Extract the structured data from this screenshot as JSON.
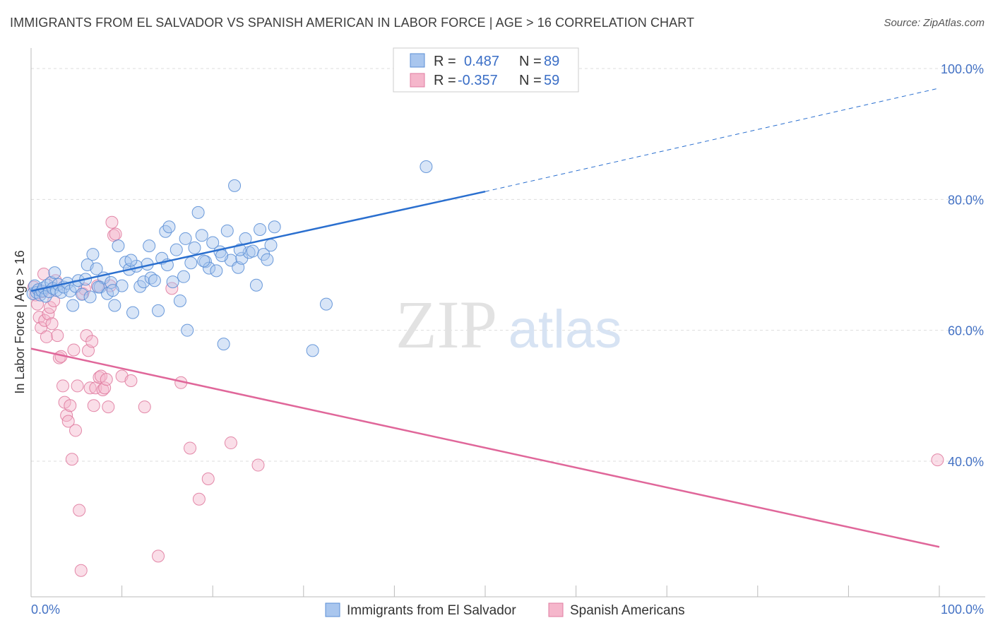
{
  "title": "IMMIGRANTS FROM EL SALVADOR VS SPANISH AMERICAN IN LABOR FORCE | AGE > 16 CORRELATION CHART",
  "source": "Source: ZipAtlas.com",
  "watermark": {
    "zip": "ZIP",
    "atlas": "atlas"
  },
  "colors": {
    "blue_fill": "#a9c6ee",
    "blue_stroke": "#5b8fd6",
    "blue_line": "#2a6fcf",
    "pink_fill": "#f5b6cb",
    "pink_stroke": "#e07ca0",
    "pink_line": "#e0679a",
    "grid": "#dddddd",
    "tick": "#4472c4"
  },
  "legend": {
    "rows": [
      {
        "r_label": "R =",
        "r_value": "0.487",
        "n_label": "N =",
        "n_value": "89"
      },
      {
        "r_label": "R =",
        "r_value": "-0.357",
        "n_label": "N =",
        "n_value": "59"
      }
    ]
  },
  "chart_data": {
    "type": "scatter",
    "xlabel": "",
    "ylabel": "In Labor Force | Age > 16",
    "xlim": [
      0,
      100
    ],
    "ylim": [
      21,
      104
    ],
    "x_ticks": [
      "0.0%",
      "100.0%"
    ],
    "y_ticks": [
      {
        "value": 40,
        "label": "40.0%"
      },
      {
        "value": 60,
        "label": "60.0%"
      },
      {
        "value": 80,
        "label": "80.0%"
      },
      {
        "value": 100,
        "label": "100.0%"
      }
    ],
    "grid": true,
    "legend_placement": "top-center",
    "series": [
      {
        "name": "Immigrants from El Salvador",
        "trend": {
          "x0": 0,
          "y0": 66.0,
          "x1": 50,
          "y1": 81.2,
          "dashed_to_x": 100,
          "dashed_to_y": 97.0
        },
        "points": [
          [
            0.2,
            65.6
          ],
          [
            0.4,
            66.8
          ],
          [
            0.6,
            65.8
          ],
          [
            0.8,
            66.2
          ],
          [
            1.0,
            65.4
          ],
          [
            1.2,
            66.0
          ],
          [
            1.4,
            66.5
          ],
          [
            1.6,
            65.2
          ],
          [
            1.8,
            66.9
          ],
          [
            2.0,
            65.9
          ],
          [
            2.2,
            67.3
          ],
          [
            2.4,
            66.4
          ],
          [
            2.6,
            68.8
          ],
          [
            2.8,
            66.1
          ],
          [
            3.0,
            67.0
          ],
          [
            3.3,
            65.8
          ],
          [
            3.6,
            66.6
          ],
          [
            4.0,
            67.2
          ],
          [
            4.3,
            66.0
          ],
          [
            4.6,
            63.8
          ],
          [
            4.9,
            66.7
          ],
          [
            5.2,
            67.6
          ],
          [
            5.6,
            65.5
          ],
          [
            6.0,
            67.8
          ],
          [
            6.2,
            70.0
          ],
          [
            6.5,
            65.1
          ],
          [
            6.8,
            71.6
          ],
          [
            7.2,
            69.4
          ],
          [
            7.6,
            66.6
          ],
          [
            8.0,
            68.0
          ],
          [
            8.4,
            65.6
          ],
          [
            8.8,
            67.3
          ],
          [
            9.2,
            63.8
          ],
          [
            9.6,
            72.9
          ],
          [
            10.0,
            66.8
          ],
          [
            10.4,
            70.4
          ],
          [
            10.8,
            69.3
          ],
          [
            11.2,
            62.7
          ],
          [
            11.6,
            69.8
          ],
          [
            12.0,
            66.7
          ],
          [
            12.4,
            67.4
          ],
          [
            12.8,
            70.1
          ],
          [
            13.2,
            68.0
          ],
          [
            13.6,
            67.6
          ],
          [
            14.0,
            63.0
          ],
          [
            14.4,
            71.0
          ],
          [
            14.8,
            75.1
          ],
          [
            15.2,
            75.8
          ],
          [
            15.6,
            67.4
          ],
          [
            16.0,
            72.3
          ],
          [
            16.4,
            64.5
          ],
          [
            16.8,
            68.2
          ],
          [
            17.2,
            60.0
          ],
          [
            17.6,
            70.3
          ],
          [
            18.0,
            72.6
          ],
          [
            18.4,
            78.0
          ],
          [
            18.8,
            74.5
          ],
          [
            19.2,
            70.5
          ],
          [
            19.6,
            69.5
          ],
          [
            20.0,
            73.4
          ],
          [
            20.4,
            69.1
          ],
          [
            20.8,
            72.0
          ],
          [
            21.2,
            57.9
          ],
          [
            21.6,
            75.2
          ],
          [
            22.0,
            70.7
          ],
          [
            22.4,
            82.1
          ],
          [
            22.8,
            69.6
          ],
          [
            23.2,
            71.0
          ],
          [
            23.6,
            74.0
          ],
          [
            24.0,
            71.9
          ],
          [
            24.4,
            72.1
          ],
          [
            24.8,
            66.9
          ],
          [
            25.2,
            75.4
          ],
          [
            25.6,
            71.6
          ],
          [
            26.0,
            70.8
          ],
          [
            26.4,
            73.0
          ],
          [
            26.8,
            75.8
          ],
          [
            7.4,
            66.6
          ],
          [
            9.0,
            66.1
          ],
          [
            11.0,
            70.7
          ],
          [
            13.0,
            72.9
          ],
          [
            15.0,
            70.0
          ],
          [
            17.0,
            74.0
          ],
          [
            19.0,
            70.6
          ],
          [
            21.0,
            71.4
          ],
          [
            23.0,
            72.3
          ],
          [
            31.0,
            56.9
          ],
          [
            32.5,
            64.0
          ],
          [
            43.5,
            85.0
          ]
        ]
      },
      {
        "name": "Spanish Americans",
        "trend": {
          "x0": 0,
          "y0": 57.2,
          "x1": 100,
          "y1": 26.9
        },
        "points": [
          [
            0.3,
            66.6
          ],
          [
            0.5,
            65.4
          ],
          [
            0.7,
            64.0
          ],
          [
            0.9,
            62.0
          ],
          [
            1.1,
            60.4
          ],
          [
            1.3,
            65.9
          ],
          [
            1.5,
            61.5
          ],
          [
            1.7,
            59.0
          ],
          [
            1.9,
            62.5
          ],
          [
            2.1,
            63.5
          ],
          [
            2.3,
            61.0
          ],
          [
            2.5,
            64.5
          ],
          [
            2.7,
            67.6
          ],
          [
            2.9,
            59.2
          ],
          [
            3.1,
            55.8
          ],
          [
            3.3,
            56.0
          ],
          [
            3.5,
            51.5
          ],
          [
            3.7,
            49.0
          ],
          [
            3.9,
            47.0
          ],
          [
            4.1,
            46.1
          ],
          [
            4.3,
            48.5
          ],
          [
            4.5,
            40.3
          ],
          [
            4.7,
            57.0
          ],
          [
            4.9,
            44.7
          ],
          [
            5.1,
            51.5
          ],
          [
            5.3,
            32.5
          ],
          [
            5.5,
            23.3
          ],
          [
            5.7,
            65.6
          ],
          [
            5.9,
            66.3
          ],
          [
            6.1,
            59.2
          ],
          [
            6.3,
            56.9
          ],
          [
            6.5,
            51.2
          ],
          [
            6.7,
            58.3
          ],
          [
            6.9,
            48.5
          ],
          [
            7.1,
            51.2
          ],
          [
            7.3,
            66.8
          ],
          [
            7.5,
            52.8
          ],
          [
            7.7,
            53.0
          ],
          [
            7.9,
            50.9
          ],
          [
            8.1,
            51.2
          ],
          [
            8.3,
            52.5
          ],
          [
            8.5,
            48.3
          ],
          [
            8.7,
            66.8
          ],
          [
            8.9,
            76.5
          ],
          [
            9.1,
            74.5
          ],
          [
            9.3,
            74.7
          ],
          [
            10.0,
            53.0
          ],
          [
            11.0,
            52.3
          ],
          [
            12.5,
            48.3
          ],
          [
            14.0,
            25.5
          ],
          [
            15.5,
            66.4
          ],
          [
            16.5,
            52.0
          ],
          [
            17.5,
            42.0
          ],
          [
            18.5,
            34.2
          ],
          [
            19.5,
            37.3
          ],
          [
            22.0,
            42.8
          ],
          [
            25.0,
            39.4
          ],
          [
            1.4,
            68.6
          ],
          [
            99.8,
            40.2
          ]
        ]
      }
    ]
  },
  "bottom_legend": [
    "Immigrants from El Salvador",
    "Spanish Americans"
  ]
}
